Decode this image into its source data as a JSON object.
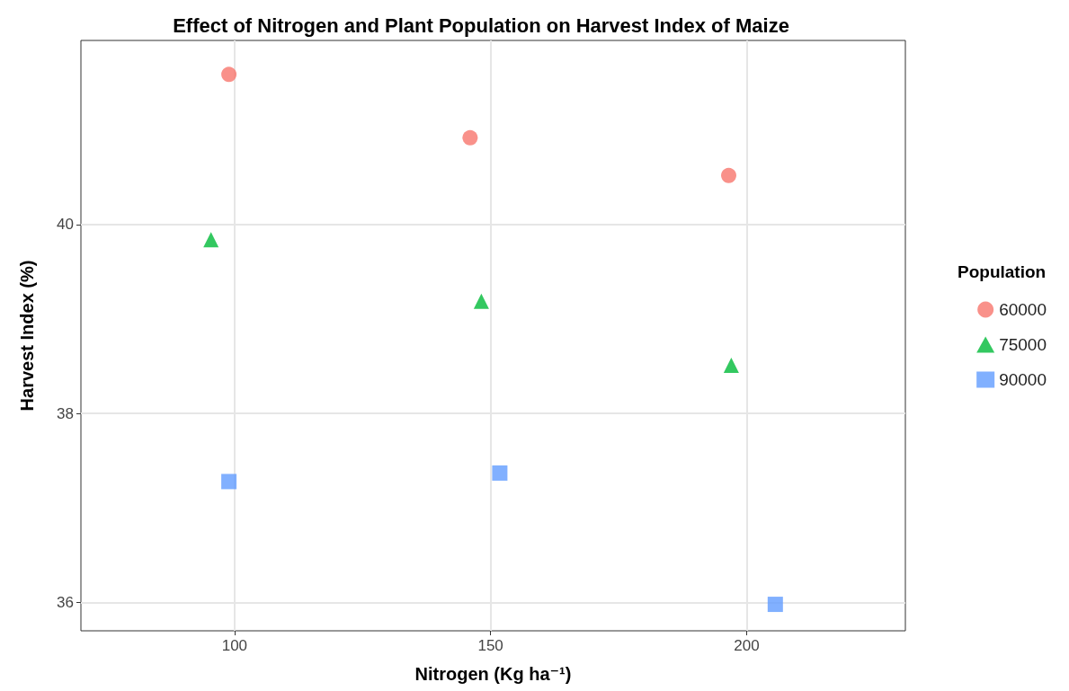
{
  "chart_data": {
    "type": "scatter",
    "title": "Effect of Nitrogen and Plant Population on Harvest Index of Maize",
    "xlabel": "Nitrogen (Kg ha⁻¹)",
    "ylabel": "Harvest Index (%)",
    "legend_title": "Population",
    "xlim": [
      70,
      231
    ],
    "xticks": [
      100,
      150,
      200
    ],
    "ylim": [
      35.7,
      41.95
    ],
    "yticks": [
      36,
      38,
      40
    ],
    "grid": true,
    "legend": "right",
    "series": [
      {
        "name": "60000",
        "color": "#f8766d",
        "marker": "circle",
        "x": [
          98.9,
          146.0,
          196.5
        ],
        "values": [
          41.59,
          40.92,
          40.52
        ]
      },
      {
        "name": "75000",
        "color": "#00ba38",
        "marker": "triangle",
        "x": [
          95.4,
          148.2,
          197.0
        ],
        "values": [
          39.84,
          39.19,
          38.51
        ]
      },
      {
        "name": "90000",
        "color": "#619cff",
        "marker": "square",
        "x": [
          98.9,
          151.8,
          205.6
        ],
        "values": [
          37.28,
          37.37,
          35.98
        ]
      }
    ]
  }
}
